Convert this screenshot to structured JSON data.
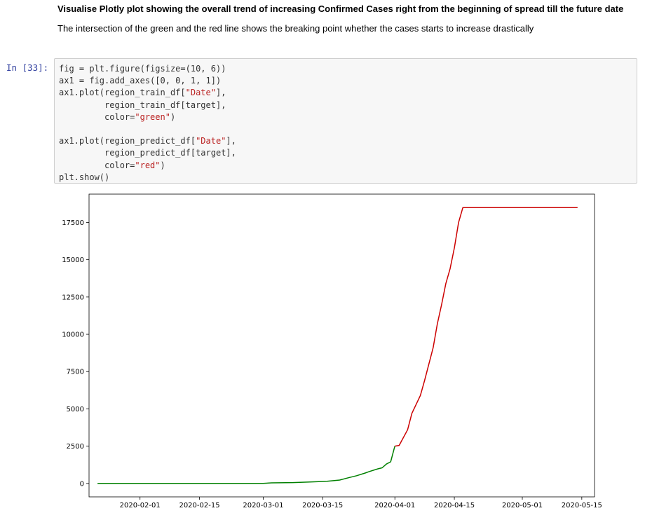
{
  "markdown": {
    "heading": "Visualise Plotly plot showing the overall trend of increasing Confirmed Cases right from the beginning of spread till the future date",
    "paragraph": "The intersection of the green and the red line shows the breaking point whether the cases starts to increase drastically"
  },
  "cell": {
    "prompt": "In [33]:",
    "code_lines": [
      [
        {
          "t": "fig = plt.figure(figsize=(10, 6))"
        }
      ],
      [
        {
          "t": "ax1 = fig.add_axes([0, 0, 1, 1])"
        }
      ],
      [
        {
          "t": "ax1.plot(region_train_df["
        },
        {
          "t": "\"Date\"",
          "s": true
        },
        {
          "t": "],"
        }
      ],
      [
        {
          "t": "         region_train_df[target],"
        }
      ],
      [
        {
          "t": "         color="
        },
        {
          "t": "\"green\"",
          "s": true
        },
        {
          "t": ")"
        }
      ],
      [
        {
          "t": ""
        }
      ],
      [
        {
          "t": "ax1.plot(region_predict_df["
        },
        {
          "t": "\"Date\"",
          "s": true
        },
        {
          "t": "],"
        }
      ],
      [
        {
          "t": "         region_predict_df[target],"
        }
      ],
      [
        {
          "t": "         color="
        },
        {
          "t": "\"red\"",
          "s": true
        },
        {
          "t": ")"
        }
      ],
      [
        {
          "t": "plt.show()"
        }
      ]
    ]
  },
  "colors": {
    "train": "#008000",
    "predict": "#cc0000",
    "prompt": "#303f9f",
    "string": "#ba2121"
  },
  "chart_data": {
    "type": "line",
    "title": "",
    "xlabel": "",
    "ylabel": "",
    "xlim": [
      "2020-01-20",
      "2020-05-18"
    ],
    "ylim": [
      -900,
      19400
    ],
    "x_ticks": [
      "2020-02-01",
      "2020-02-15",
      "2020-03-01",
      "2020-03-15",
      "2020-04-01",
      "2020-04-15",
      "2020-05-01",
      "2020-05-15"
    ],
    "y_ticks": [
      0,
      2500,
      5000,
      7500,
      10000,
      12500,
      15000,
      17500
    ],
    "grid": false,
    "series": [
      {
        "color": "green",
        "x": [
          "2020-01-22",
          "2020-02-01",
          "2020-02-15",
          "2020-03-01",
          "2020-03-03",
          "2020-03-08",
          "2020-03-12",
          "2020-03-16",
          "2020-03-19",
          "2020-03-21",
          "2020-03-23",
          "2020-03-25",
          "2020-03-26",
          "2020-03-28",
          "2020-03-29",
          "2020-03-30",
          "2020-03-31",
          "2020-04-01"
        ],
        "y": [
          0,
          0,
          0,
          5,
          40,
          60,
          100,
          150,
          230,
          380,
          520,
          700,
          800,
          980,
          1050,
          1300,
          1450,
          2500
        ]
      },
      {
        "color": "red",
        "x": [
          "2020-04-01",
          "2020-04-02",
          "2020-04-04",
          "2020-04-05",
          "2020-04-07",
          "2020-04-08",
          "2020-04-09",
          "2020-04-10",
          "2020-04-11",
          "2020-04-12",
          "2020-04-13",
          "2020-04-14",
          "2020-04-15",
          "2020-04-16",
          "2020-04-17",
          "2020-04-18",
          "2020-04-19",
          "2020-05-14"
        ],
        "y": [
          2500,
          2550,
          3600,
          4700,
          5900,
          6900,
          8000,
          9100,
          10700,
          12000,
          13400,
          14400,
          15800,
          17500,
          18500,
          18500,
          18500,
          18500
        ]
      }
    ]
  }
}
